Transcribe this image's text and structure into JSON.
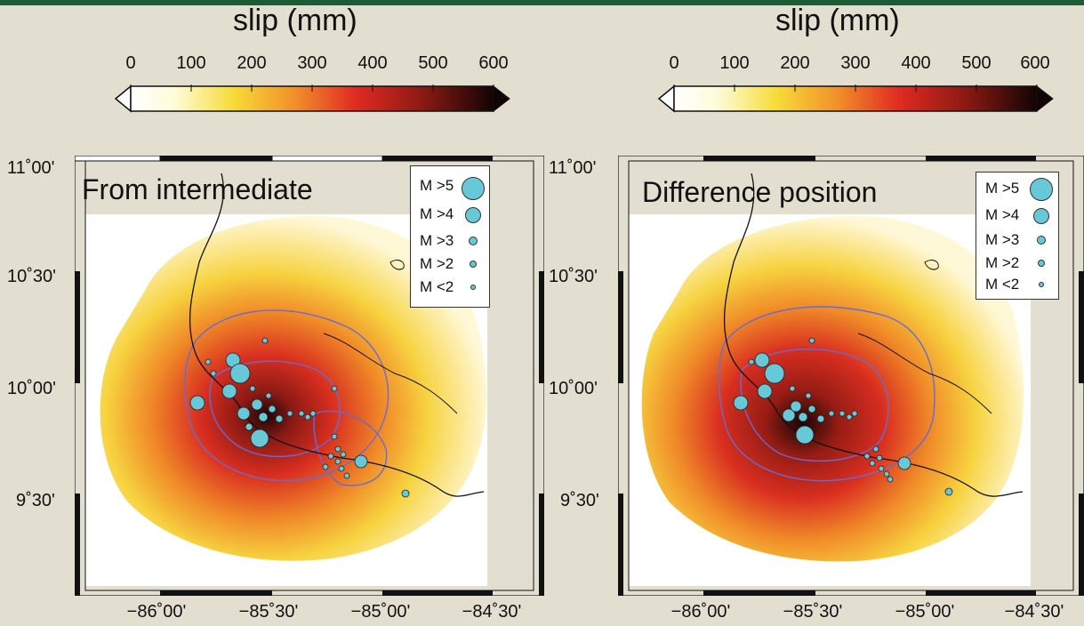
{
  "colorbar": {
    "title": "slip (mm)",
    "ticks": [
      "0",
      "100",
      "200",
      "300",
      "400",
      "500",
      "600"
    ]
  },
  "axes": {
    "lat_labels": [
      "11˚00'",
      "10˚30'",
      "10˚00'",
      "9˚30'"
    ],
    "lon_labels": [
      "−86˚00'",
      "−85˚30'",
      "−85˚00'",
      "−84˚30'"
    ]
  },
  "panels": [
    {
      "title": "From intermediate"
    },
    {
      "title": "Difference position"
    }
  ],
  "legend": {
    "items": [
      {
        "label": "M >5",
        "size": 24
      },
      {
        "label": "M >4",
        "size": 16
      },
      {
        "label": "M >3",
        "size": 8
      },
      {
        "label": "M >2",
        "size": 6
      },
      {
        "label": "M <2",
        "size": 4
      }
    ]
  },
  "colors": {
    "slip_low": "#ffffee",
    "slip_mid": "#f6d02a",
    "slip_high": "#de2a1e",
    "slip_max": "#1a0606",
    "events": "#67c8d8",
    "contour": "#6a6ad0"
  }
}
